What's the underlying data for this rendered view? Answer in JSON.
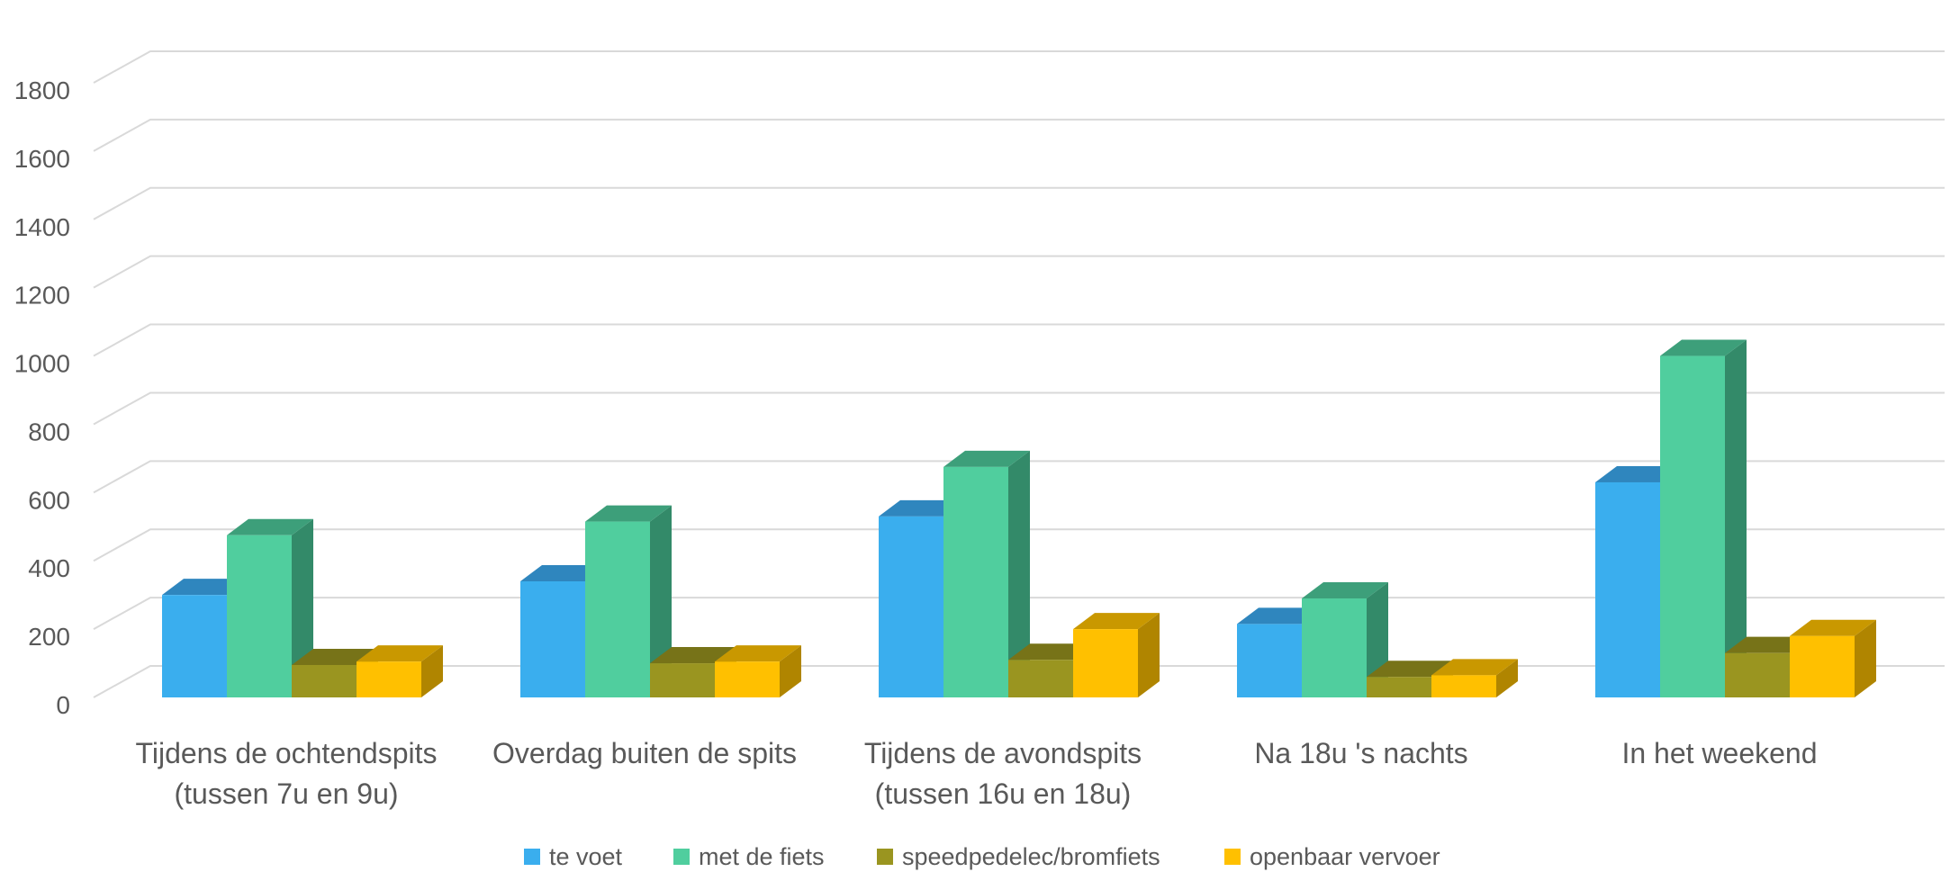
{
  "chart_data": {
    "type": "bar",
    "title": "",
    "xlabel": "",
    "ylabel": "",
    "ylim": [
      0,
      1800
    ],
    "yticks": [
      "0",
      "200",
      "400",
      "600",
      "800",
      "1000",
      "1200",
      "1400",
      "1600",
      "1800"
    ],
    "grid": true,
    "legend_position": "bottom",
    "categories": [
      [
        "Tijdens de ochtendspits",
        "(tussen 7u en 9u)"
      ],
      [
        "Overdag buiten de spits"
      ],
      [
        "Tijdens de avondspits",
        "(tussen 16u en 18u)"
      ],
      [
        "Na 18u 's nachts"
      ],
      [
        "In het weekend"
      ]
    ],
    "series": [
      {
        "name": "te voet",
        "color": "#3AAEEE",
        "top": "#2F86BE",
        "side": "#2C7FB3",
        "values": [
          300,
          340,
          530,
          215,
          630
        ]
      },
      {
        "name": "met de fiets",
        "color": "#50CE9E",
        "top": "#3D9F7A",
        "side": "#338A69",
        "values": [
          475,
          515,
          675,
          290,
          1000
        ]
      },
      {
        "name": "speedpedelec/bromfiets",
        "color": "#9A9520",
        "top": "#777318",
        "side": "#706C16",
        "values": [
          95,
          100,
          110,
          60,
          130
        ]
      },
      {
        "name": "openbaar vervoer",
        "color": "#FFC000",
        "top": "#C99800",
        "side": "#B08500",
        "values": [
          105,
          105,
          200,
          65,
          180
        ]
      }
    ]
  }
}
